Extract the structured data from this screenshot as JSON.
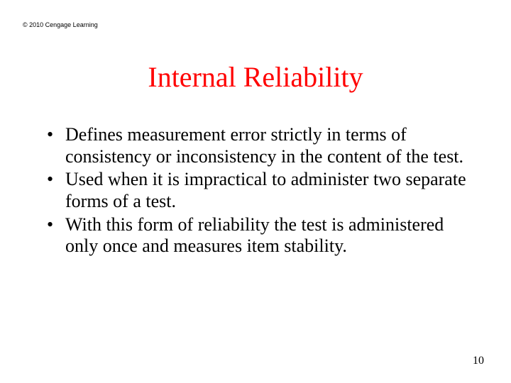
{
  "copyright": "© 2010 Cengage Learning",
  "title": "Internal Reliability",
  "bullets": [
    "Defines measurement error strictly in terms of consistency or inconsistency in the content of the test.",
    "Used when it is impractical to administer two separate forms of a test.",
    "With this form of reliability the test is administered only once and measures item stability."
  ],
  "page_number": "10",
  "colors": {
    "title": "#ff0000",
    "text": "#000000",
    "background": "#ffffff"
  },
  "fontsizes": {
    "copyright_pt": 9,
    "title_pt": 40,
    "body_pt": 26,
    "pagenum_pt": 16
  }
}
